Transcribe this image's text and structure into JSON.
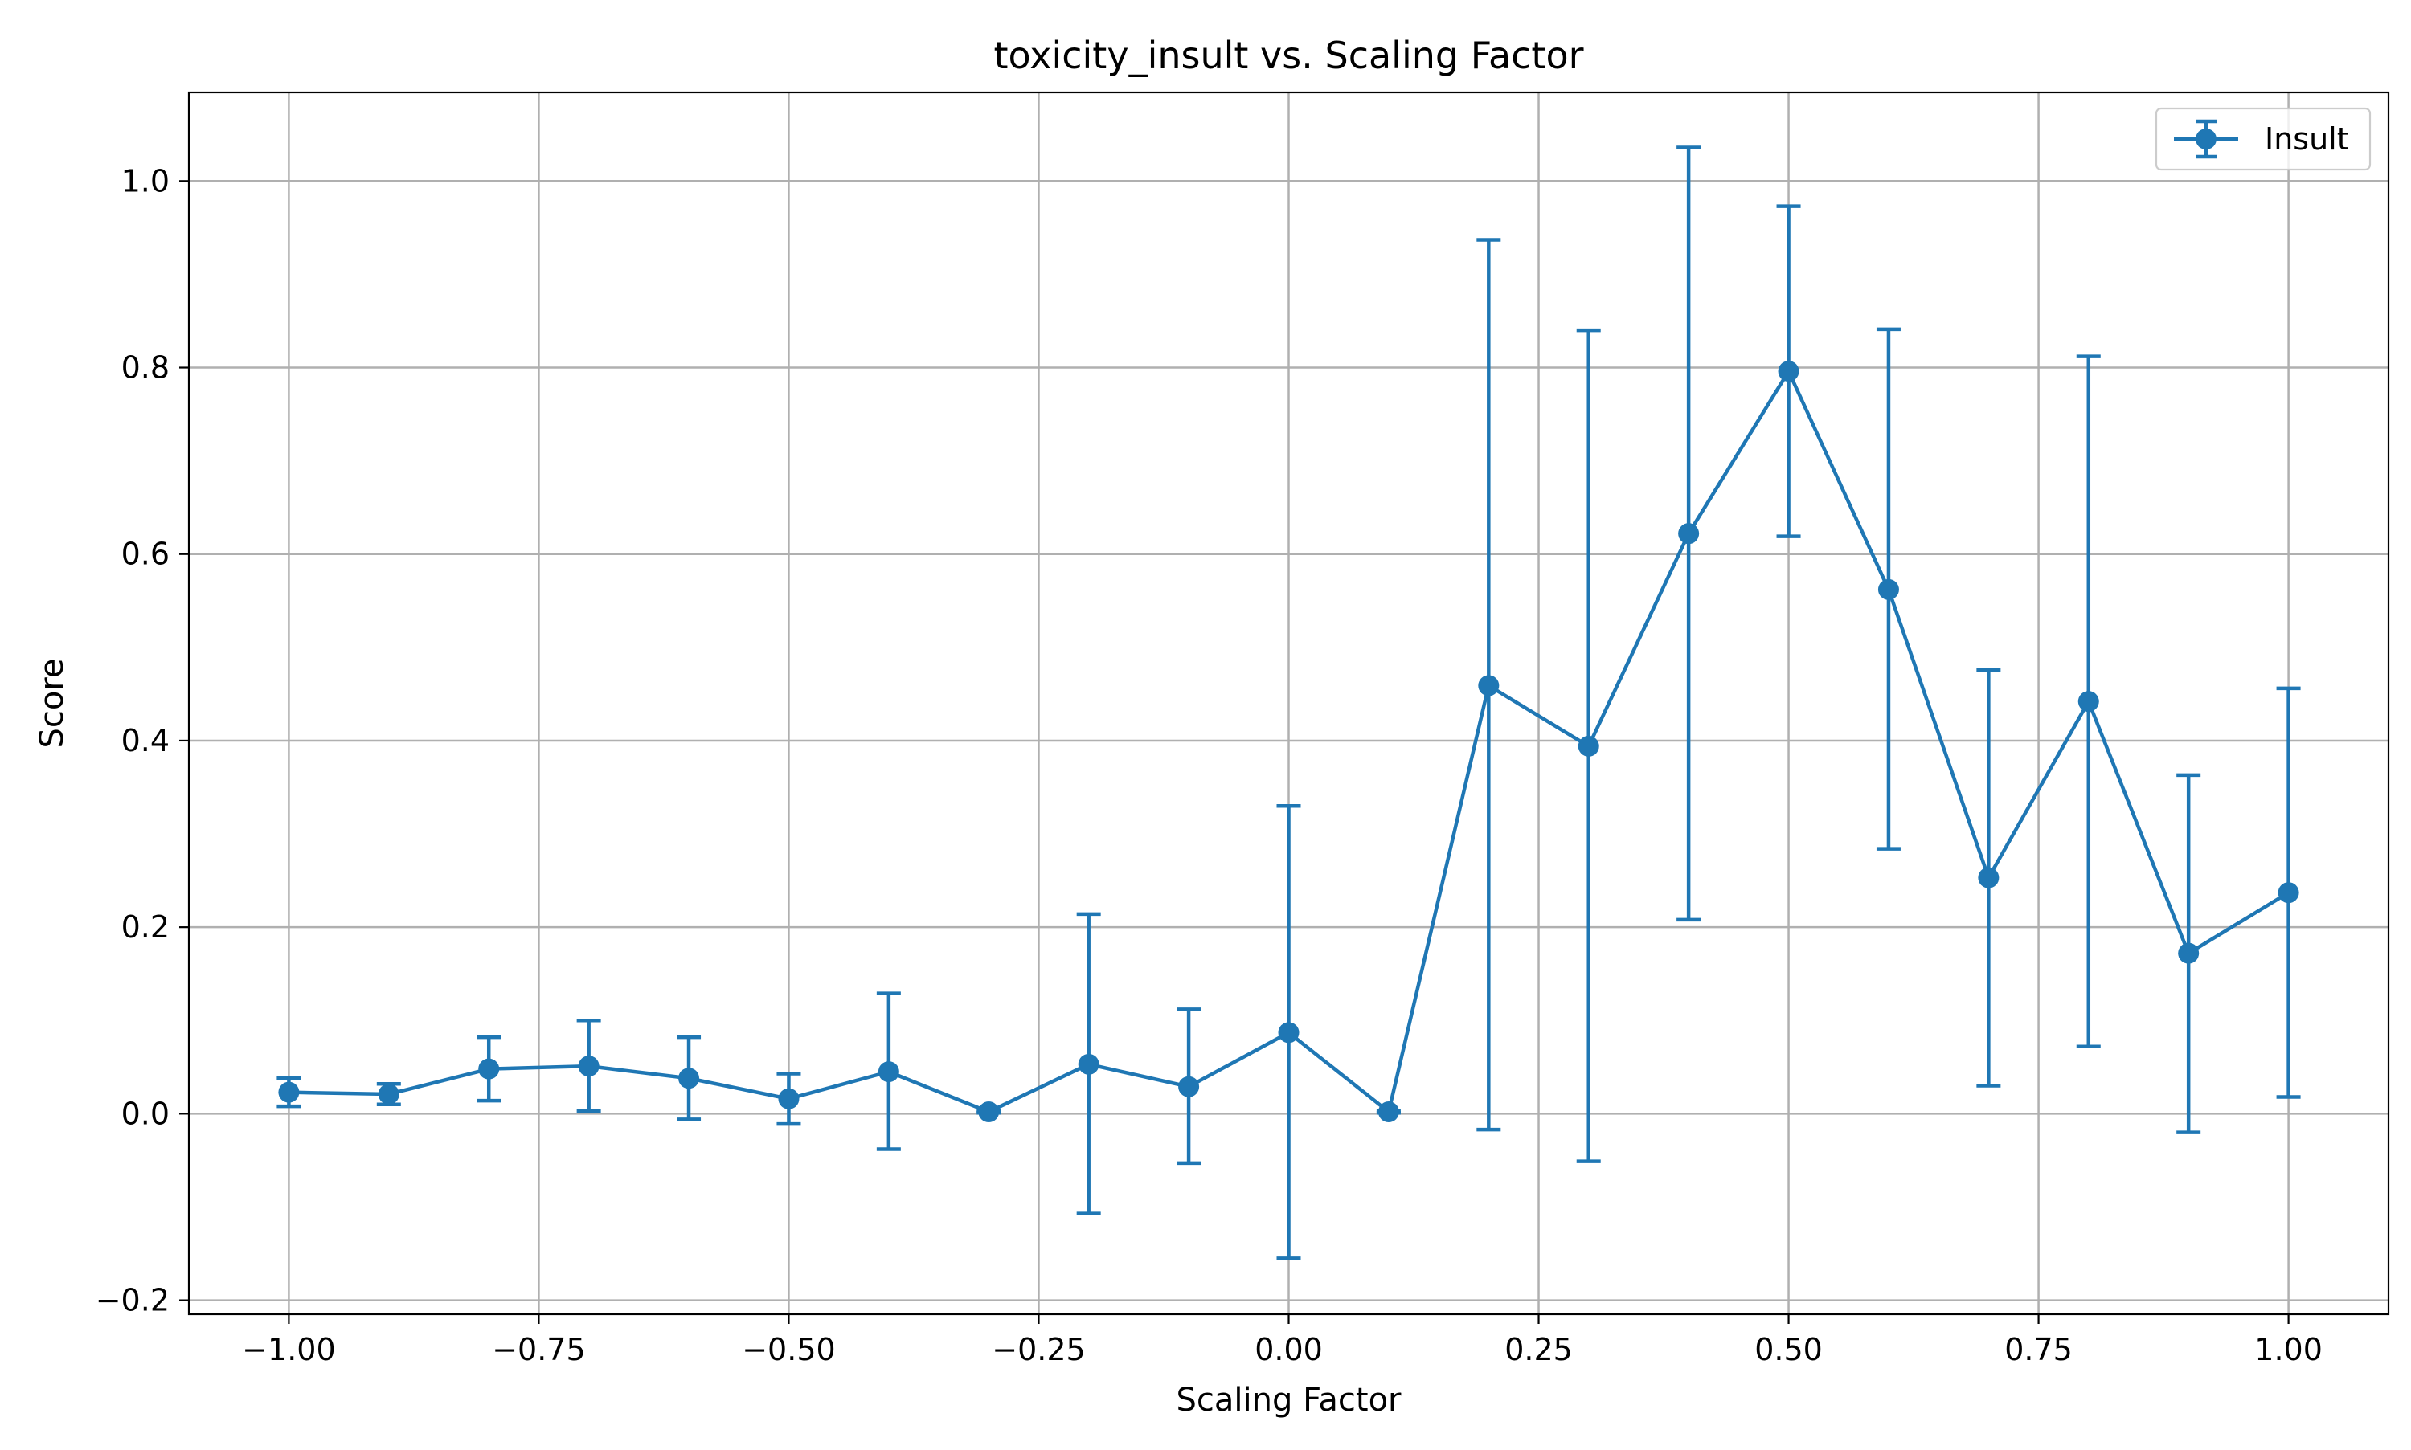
{
  "chart_data": {
    "type": "line",
    "title": "toxicity_insult vs. Scaling Factor",
    "xlabel": "Scaling Factor",
    "ylabel": "Score",
    "xlim": [
      -1.1,
      1.1
    ],
    "ylim": [
      -0.215,
      1.095
    ],
    "grid": true,
    "legend_position": "top-right",
    "x_ticks": [
      -1.0,
      -0.75,
      -0.5,
      -0.25,
      0.0,
      0.25,
      0.5,
      0.75,
      1.0
    ],
    "x_tick_labels": [
      "−1.00",
      "−0.75",
      "−0.50",
      "−0.25",
      "0.00",
      "0.25",
      "0.50",
      "0.75",
      "1.00"
    ],
    "y_ticks": [
      -0.2,
      0.0,
      0.2,
      0.4,
      0.6,
      0.8,
      1.0
    ],
    "y_tick_labels": [
      "−0.2",
      "0.0",
      "0.2",
      "0.4",
      "0.6",
      "0.8",
      "1.0"
    ],
    "series": [
      {
        "name": "Insult",
        "color": "#1f77b4",
        "marker": "circle",
        "error_bars": true,
        "x": [
          -1.0,
          -0.9,
          -0.8,
          -0.7,
          -0.6,
          -0.5,
          -0.4,
          -0.3,
          -0.2,
          -0.1,
          0.0,
          0.1,
          0.2,
          0.3,
          0.4,
          0.5,
          0.6,
          0.7,
          0.8,
          0.9,
          1.0
        ],
        "y": [
          0.023,
          0.021,
          0.048,
          0.051,
          0.038,
          0.016,
          0.045,
          0.002,
          0.053,
          0.029,
          0.087,
          0.002,
          0.459,
          0.394,
          0.622,
          0.796,
          0.562,
          0.253,
          0.442,
          0.172,
          0.237
        ],
        "yerr_low": [
          0.008,
          0.01,
          0.014,
          0.003,
          -0.006,
          -0.011,
          -0.038,
          0.001,
          -0.107,
          -0.053,
          -0.155,
          0.001,
          -0.017,
          -0.051,
          0.208,
          0.619,
          0.284,
          0.03,
          0.072,
          -0.02,
          0.018
        ],
        "yerr_high": [
          0.038,
          0.032,
          0.082,
          0.1,
          0.082,
          0.043,
          0.129,
          0.003,
          0.214,
          0.112,
          0.33,
          0.003,
          0.937,
          0.84,
          1.036,
          0.973,
          0.841,
          0.476,
          0.812,
          0.363,
          0.456
        ]
      }
    ]
  }
}
